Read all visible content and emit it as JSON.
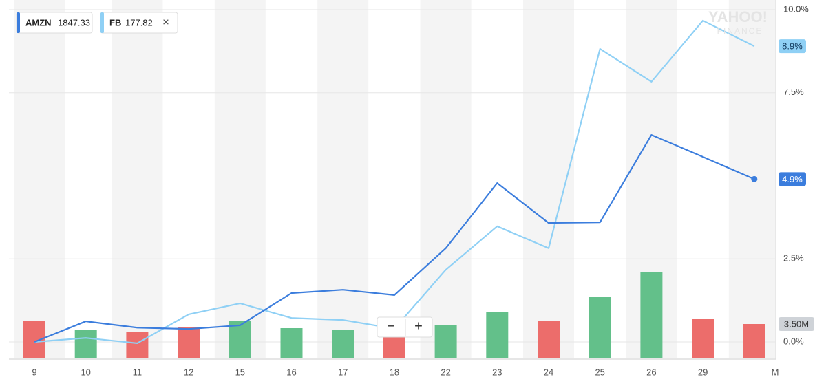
{
  "chart_data": {
    "type": "line",
    "categories": [
      "9",
      "10",
      "11",
      "12",
      "15",
      "16",
      "17",
      "18",
      "22",
      "23",
      "24",
      "25",
      "26",
      "29",
      null
    ],
    "month_label": "M",
    "series": [
      {
        "name": "AMZN",
        "quote": 1847.33,
        "color": "#3b7ddd",
        "values": [
          0.0,
          0.62,
          0.43,
          0.39,
          0.5,
          1.47,
          1.57,
          1.41,
          2.82,
          4.78,
          3.58,
          3.6,
          6.23,
          5.57,
          4.9
        ],
        "value_labels": [
          null,
          null,
          null,
          null,
          null,
          null,
          null,
          null,
          null,
          null,
          null,
          null,
          null,
          null,
          "4.9%"
        ]
      },
      {
        "name": "FB",
        "quote": 177.82,
        "color": "#8fd0f5",
        "values": [
          0.0,
          0.12,
          -0.04,
          0.83,
          1.16,
          0.72,
          0.66,
          0.4,
          2.17,
          3.48,
          2.82,
          8.82,
          7.83,
          9.67,
          8.9
        ],
        "value_labels": [
          null,
          null,
          null,
          null,
          null,
          null,
          null,
          null,
          null,
          null,
          null,
          null,
          null,
          null,
          "8.9%"
        ]
      }
    ],
    "volume": {
      "values": [
        3.78,
        2.94,
        2.66,
        3.15,
        3.78,
        3.08,
        2.87,
        2.31,
        3.43,
        4.69,
        3.78,
        6.3,
        8.82,
        4.06,
        3.5
      ],
      "colors": [
        "#ec6d6b",
        "#63c08a",
        "#ec6d6b",
        "#ec6d6b",
        "#63c08a",
        "#63c08a",
        "#63c08a",
        "#ec6d6b",
        "#63c08a",
        "#63c08a",
        "#ec6d6b",
        "#63c08a",
        "#63c08a",
        "#ec6d6b",
        "#ec6d6b"
      ],
      "value_labels": [
        null,
        null,
        null,
        null,
        null,
        null,
        null,
        null,
        null,
        null,
        null,
        null,
        null,
        null,
        "3.50M"
      ],
      "vlim": [
        0,
        35
      ]
    },
    "ylim": [
      0,
      10
    ],
    "yticks": [
      {
        "value": 0,
        "label": "0.0%"
      },
      {
        "value": 2.5,
        "label": "2.5%"
      },
      {
        "value": 7.5,
        "label": "7.5%"
      },
      {
        "value": 10,
        "label": "10.0%"
      }
    ],
    "grid": true,
    "legend_close": "×",
    "zoom_out": "−",
    "zoom_in": "+",
    "watermark": [
      "YAHOO!",
      "FINANCE"
    ]
  }
}
